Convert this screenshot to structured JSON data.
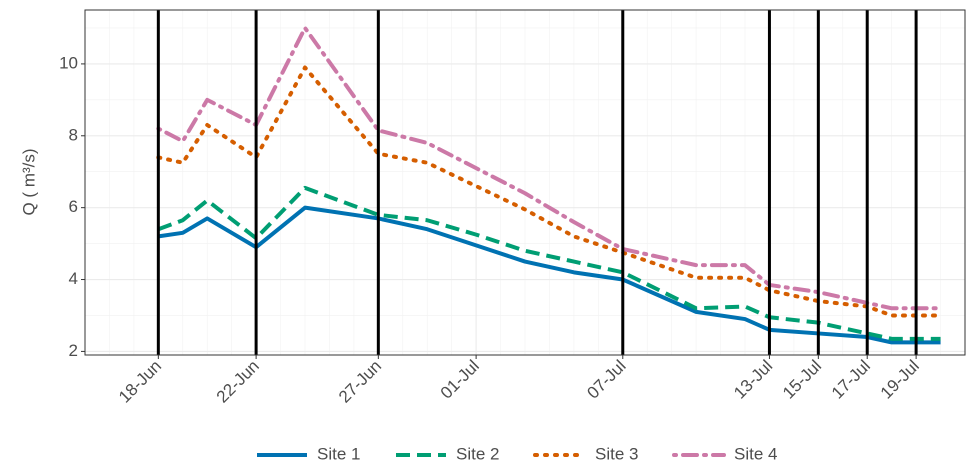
{
  "chart_data": {
    "type": "line",
    "y_label": "Q ( m³/s)",
    "x": [
      "18-Jun",
      "19-Jun",
      "20-Jun",
      "22-Jun",
      "24-Jun",
      "27-Jun",
      "29-Jun",
      "01-Jul",
      "03-Jul",
      "05-Jul",
      "07-Jul",
      "10-Jul",
      "12-Jul",
      "13-Jul",
      "15-Jul",
      "17-Jul",
      "18-Jul",
      "20-Jul"
    ],
    "series": [
      {
        "name": "Site 1",
        "color": "#0072B2",
        "dash": "solid",
        "values": [
          5.2,
          5.3,
          5.7,
          4.9,
          6.0,
          5.7,
          5.4,
          4.95,
          4.5,
          4.2,
          4.0,
          3.1,
          2.9,
          2.6,
          2.5,
          2.4,
          2.25,
          2.25
        ]
      },
      {
        "name": "Site 2",
        "color": "#009E73",
        "dash": "dashed",
        "values": [
          5.4,
          5.65,
          6.2,
          5.15,
          6.55,
          5.8,
          5.65,
          5.25,
          4.8,
          4.5,
          4.2,
          3.2,
          3.25,
          2.95,
          2.8,
          2.5,
          2.35,
          2.35
        ]
      },
      {
        "name": "Site 3",
        "color": "#D55E00",
        "dash": "dotted",
        "values": [
          7.4,
          7.25,
          8.3,
          7.4,
          9.9,
          7.5,
          7.25,
          6.6,
          5.95,
          5.2,
          4.75,
          4.05,
          4.05,
          3.7,
          3.4,
          3.25,
          3.0,
          3.0
        ]
      },
      {
        "name": "Site 4",
        "color": "#CC79A7",
        "dash": "dotdash",
        "values": [
          8.2,
          7.85,
          9.0,
          8.3,
          11.0,
          8.15,
          7.8,
          7.1,
          6.4,
          5.6,
          4.85,
          4.4,
          4.4,
          3.85,
          3.65,
          3.35,
          3.2,
          3.2
        ]
      }
    ],
    "vlines": [
      "18-Jun",
      "22-Jun",
      "27-Jun",
      "07-Jul",
      "13-Jul",
      "15-Jul",
      "17-Jul",
      "19-Jul"
    ],
    "xlim": [
      "15-Jun",
      "21-Jul"
    ],
    "xticks": [
      "18-Jun",
      "22-Jun",
      "27-Jun",
      "01-Jul",
      "07-Jul",
      "13-Jul",
      "15-Jul",
      "17-Jul",
      "19-Jul"
    ],
    "ylim": [
      1.9,
      11.5
    ],
    "yticks": [
      2,
      4,
      6,
      8,
      10
    ],
    "grid": true,
    "legend": "bottom"
  }
}
